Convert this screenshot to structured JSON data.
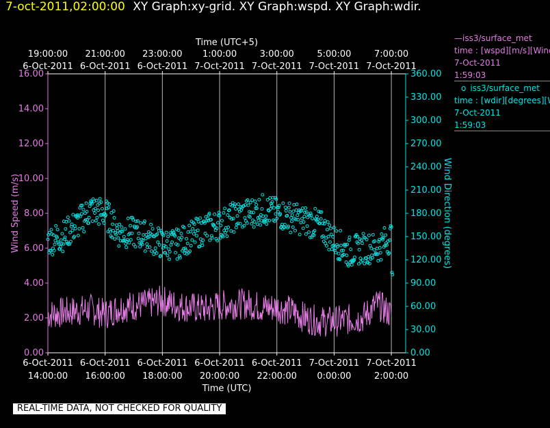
{
  "header": {
    "datetime": "7-oct-2011,02:00:00",
    "graphs": "XY Graph:xy-grid.  XY Graph:wspd.  XY Graph:wdir."
  },
  "legend": [
    {
      "marker": "—",
      "name": "iss3/surface_met",
      "var": "time : [wspd][m/s][Wind",
      "date": "7-Oct-2011",
      "time": "1:59:03",
      "color": "#e47de4"
    },
    {
      "marker": "o",
      "name": "iss3/surface_met",
      "var": "time : [wdir][degrees][W",
      "date": "7-Oct-2011",
      "time": "1:59:03",
      "color": "#00e5e5"
    }
  ],
  "footer": "REAL-TIME DATA, NOT CHECKED FOR QUALITY",
  "chart_data": {
    "type": "line",
    "x_top_label": "Time (UTC+5)",
    "x_bottom_label": "Time (UTC)",
    "y_left_label": "Wind Speed (m/s)",
    "y_right_label": "Wind Direction (degrees)",
    "x_range_hours": [
      14,
      26.5
    ],
    "ylim_left": [
      0,
      16
    ],
    "ylim_right": [
      0,
      360
    ],
    "y_left_ticks": [
      "0.00",
      "2.00",
      "4.00",
      "6.00",
      "8.00",
      "10.00",
      "12.00",
      "14.00",
      "16.00"
    ],
    "y_right_ticks": [
      "0.00",
      "30.00",
      "60.00",
      "90.00",
      "120.00",
      "150.00",
      "180.00",
      "210.00",
      "240.00",
      "270.00",
      "300.00",
      "330.00",
      "360.00"
    ],
    "x_bottom_ticks": [
      {
        "h": 14,
        "date": "6-Oct-2011",
        "time": "14:00:00"
      },
      {
        "h": 16,
        "date": "6-Oct-2011",
        "time": "16:00:00"
      },
      {
        "h": 18,
        "date": "6-Oct-2011",
        "time": "18:00:00"
      },
      {
        "h": 20,
        "date": "6-Oct-2011",
        "time": "20:00:00"
      },
      {
        "h": 22,
        "date": "6-Oct-2011",
        "time": "22:00:00"
      },
      {
        "h": 24,
        "date": "7-Oct-2011",
        "time": "0:00:00"
      },
      {
        "h": 26,
        "date": "7-Oct-2011",
        "time": "2:00:00"
      }
    ],
    "x_top_ticks": [
      {
        "h": 14,
        "time": "19:00:00",
        "date": "6-Oct-2011"
      },
      {
        "h": 16,
        "time": "21:00:00",
        "date": "6-Oct-2011"
      },
      {
        "h": 18,
        "time": "23:00:00",
        "date": "6-Oct-2011"
      },
      {
        "h": 20,
        "time": "1:00:00",
        "date": "7-Oct-2011"
      },
      {
        "h": 22,
        "time": "3:00:00",
        "date": "7-Oct-2011"
      },
      {
        "h": 24,
        "time": "5:00:00",
        "date": "7-Oct-2011"
      },
      {
        "h": 26,
        "time": "7:00:00",
        "date": "7-Oct-2011"
      }
    ],
    "grid": true,
    "series": [
      {
        "name": "iss3/surface_met time : [wspd][m/s]",
        "axis": "left",
        "style": "line",
        "color": "#e47de4",
        "x": [
          14.0,
          14.5,
          15.0,
          15.5,
          16.0,
          16.5,
          17.0,
          17.5,
          18.0,
          18.5,
          19.0,
          19.5,
          20.0,
          20.5,
          21.0,
          21.5,
          22.0,
          22.5,
          23.0,
          23.5,
          24.0,
          24.5,
          25.0,
          25.5,
          26.0,
          26.0
        ],
        "y": [
          2.2,
          2.3,
          2.4,
          2.5,
          2.2,
          2.6,
          2.7,
          2.8,
          3.0,
          2.7,
          2.6,
          2.5,
          2.7,
          2.8,
          2.8,
          2.6,
          2.6,
          2.4,
          2.0,
          1.8,
          1.8,
          1.9,
          2.0,
          2.8,
          2.2,
          3.4
        ]
      },
      {
        "name": "iss3/surface_met time : [wdir][degrees]",
        "axis": "right",
        "style": "points",
        "color": "#00e5e5",
        "x": [
          14.0,
          14.5,
          15.0,
          15.5,
          16.0,
          16.5,
          17.0,
          17.5,
          18.0,
          18.5,
          19.0,
          19.5,
          20.0,
          20.5,
          21.0,
          21.5,
          22.0,
          22.5,
          23.0,
          23.5,
          24.0,
          24.5,
          25.0,
          25.5,
          26.0,
          26.0
        ],
        "y": [
          145,
          150,
          165,
          185,
          180,
          155,
          155,
          150,
          140,
          140,
          150,
          160,
          165,
          175,
          180,
          185,
          180,
          175,
          170,
          165,
          145,
          130,
          135,
          135,
          150,
          120
        ]
      }
    ]
  }
}
